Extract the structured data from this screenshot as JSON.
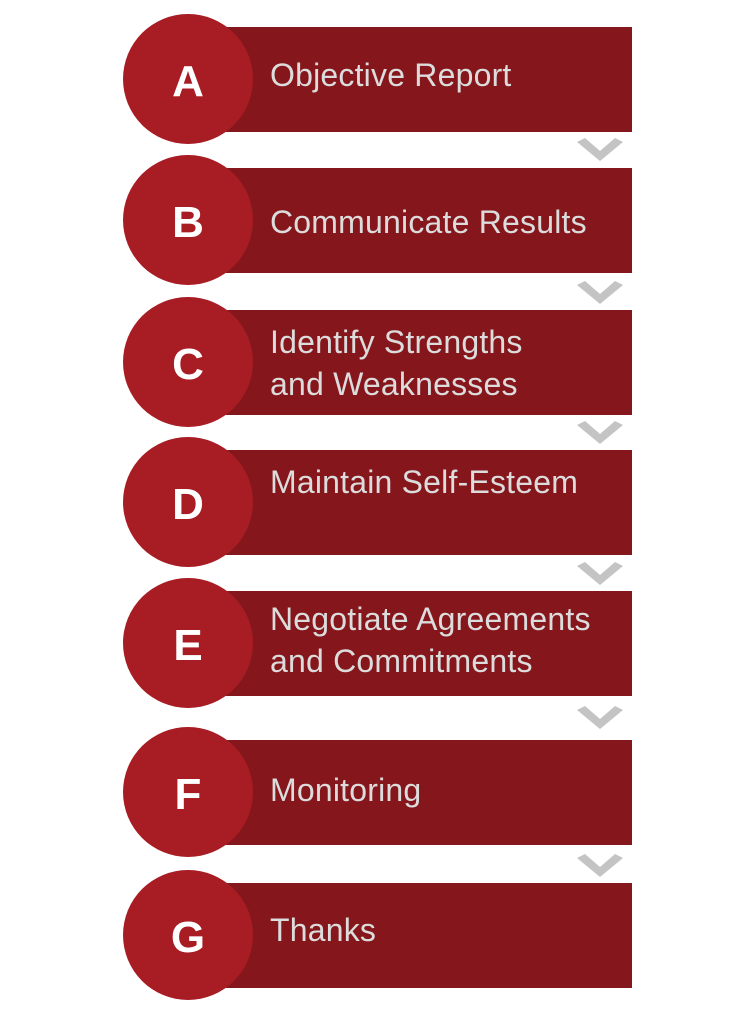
{
  "colors": {
    "bar": "#85171c",
    "circle": "#a81c24",
    "letter": "#ffffff",
    "text": "#dcdcdc",
    "chevron": "#c4c4c4"
  },
  "steps": [
    {
      "letter": "A",
      "lines": [
        "Objective Report"
      ]
    },
    {
      "letter": "B",
      "lines": [
        "Communicate Results"
      ]
    },
    {
      "letter": "C",
      "lines": [
        "Identify Strengths",
        "and Weaknesses"
      ]
    },
    {
      "letter": "D",
      "lines": [
        "Maintain Self-Esteem"
      ]
    },
    {
      "letter": "E",
      "lines": [
        "Negotiate Agreements",
        "and Commitments"
      ]
    },
    {
      "letter": "F",
      "lines": [
        "Monitoring"
      ]
    },
    {
      "letter": "G",
      "lines": [
        "Thanks"
      ]
    }
  ],
  "connector_icon": "chevron-down-icon"
}
